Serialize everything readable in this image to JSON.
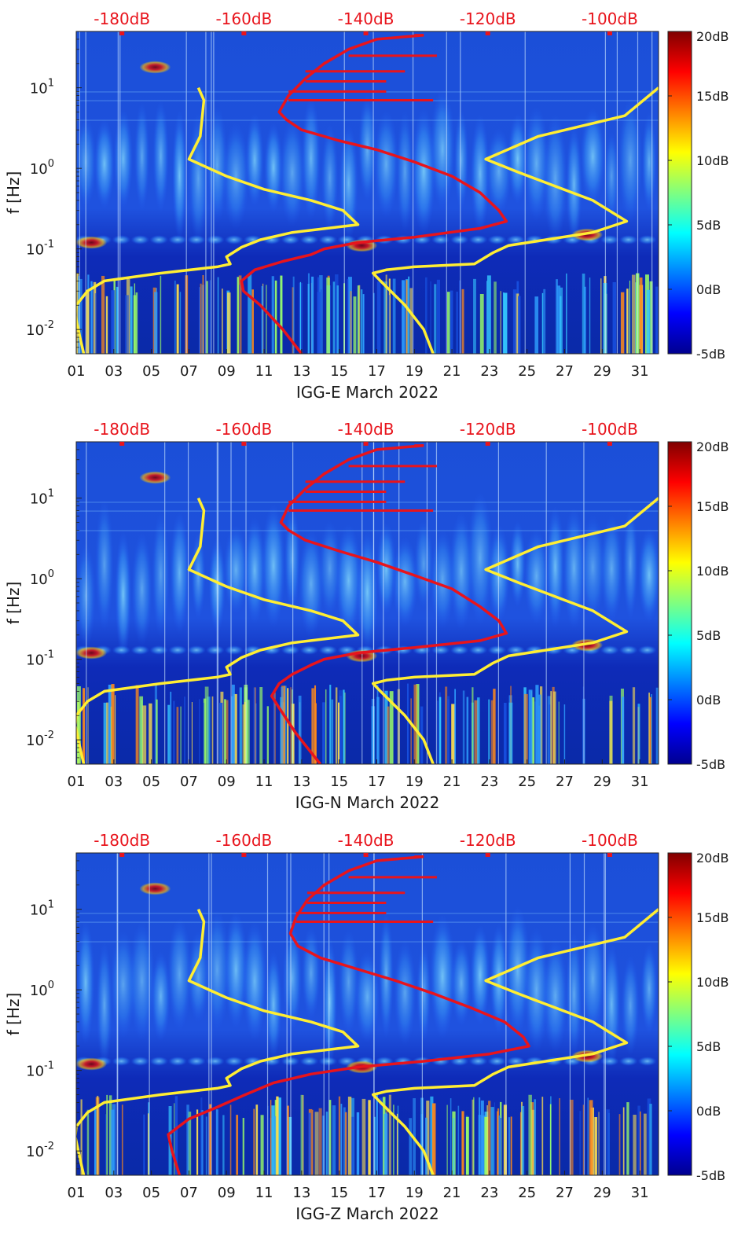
{
  "chart_data": [
    {
      "type": "heatmap",
      "title": "IGG-E March 2022",
      "ylabel": "f [Hz]",
      "x_tick_labels": [
        "01",
        "03",
        "05",
        "07",
        "09",
        "11",
        "13",
        "15",
        "17",
        "19",
        "21",
        "23",
        "25",
        "27",
        "29",
        "31"
      ],
      "x_range_days": [
        1,
        32
      ],
      "y_scale": "log",
      "y_range_hz": [
        0.005,
        50
      ],
      "y_ticks": [
        {
          "mant": "10",
          "exp": "-2"
        },
        {
          "mant": "10",
          "exp": "-1"
        },
        {
          "mant": "10",
          "exp": "0"
        },
        {
          "mant": "10",
          "exp": "1"
        }
      ],
      "top_axis_labels": [
        "-180dB",
        "-160dB",
        "-140dB",
        "-120dB",
        "-100dB"
      ],
      "top_axis_range_db": [
        -187.5,
        -92
      ],
      "colorbar": {
        "range_db": [
          -5,
          20
        ],
        "labels": [
          "20dB",
          "15dB",
          "10dB",
          "5dB",
          "0dB",
          "-5dB"
        ]
      },
      "yellow_curve": [
        [
          7.5,
          10
        ],
        [
          7.8,
          7
        ],
        [
          7.6,
          2.5
        ],
        [
          7.0,
          1.3
        ],
        [
          9.0,
          0.8
        ],
        [
          11.0,
          0.55
        ],
        [
          13.5,
          0.4
        ],
        [
          15.2,
          0.3
        ],
        [
          16.0,
          0.2
        ],
        [
          12.5,
          0.16
        ],
        [
          10.8,
          0.13
        ],
        [
          9.8,
          0.105
        ],
        [
          9.0,
          0.08
        ],
        [
          9.2,
          0.065
        ],
        [
          8.5,
          0.06
        ],
        [
          5.5,
          0.05
        ],
        [
          2.5,
          0.04
        ],
        [
          1.6,
          0.03
        ],
        [
          1.0,
          0.02
        ],
        [
          0.95,
          0.015
        ],
        [
          1.2,
          0.008
        ],
        [
          1.4,
          0.005
        ]
      ],
      "yellow_curve_right": [
        [
          32,
          10
        ],
        [
          30.2,
          4.5
        ],
        [
          25.6,
          2.5
        ],
        [
          22.8,
          1.3
        ],
        [
          24.5,
          0.9
        ],
        [
          26.5,
          0.6
        ],
        [
          28.5,
          0.4
        ],
        [
          30.3,
          0.22
        ],
        [
          28.5,
          0.16
        ],
        [
          26.0,
          0.13
        ],
        [
          24.0,
          0.11
        ],
        [
          23.2,
          0.09
        ],
        [
          22.2,
          0.065
        ],
        [
          19.0,
          0.06
        ],
        [
          17.5,
          0.055
        ],
        [
          16.8,
          0.05
        ],
        [
          17.2,
          0.04
        ],
        [
          18.5,
          0.02
        ],
        [
          19.5,
          0.01
        ],
        [
          20.0,
          0.005
        ]
      ],
      "red_curve": [
        [
          19.5,
          45
        ],
        [
          17.0,
          40
        ],
        [
          15.5,
          30
        ],
        [
          14.2,
          20
        ],
        [
          13.2,
          13
        ],
        [
          12.3,
          8
        ],
        [
          11.8,
          5
        ],
        [
          12.2,
          4
        ],
        [
          13.0,
          3
        ],
        [
          15.0,
          2.2
        ],
        [
          17.0,
          1.7
        ],
        [
          19.0,
          1.2
        ],
        [
          21.0,
          0.8
        ],
        [
          22.5,
          0.5
        ],
        [
          23.5,
          0.3
        ],
        [
          23.9,
          0.22
        ],
        [
          22.5,
          0.18
        ],
        [
          19.0,
          0.14
        ],
        [
          16.0,
          0.12
        ],
        [
          14.2,
          0.1
        ],
        [
          13.5,
          0.085
        ],
        [
          12.0,
          0.07
        ],
        [
          10.5,
          0.055
        ],
        [
          9.8,
          0.04
        ],
        [
          9.9,
          0.03
        ],
        [
          10.8,
          0.02
        ],
        [
          12.0,
          0.01
        ],
        [
          13.0,
          0.005
        ]
      ],
      "red_fingers": [
        [
          19.0,
          45
        ],
        [
          20.2,
          25
        ],
        [
          18.5,
          16
        ],
        [
          17.5,
          12
        ],
        [
          17.5,
          9
        ],
        [
          20.0,
          7
        ]
      ]
    },
    {
      "type": "heatmap",
      "title": "IGG-N March 2022",
      "ylabel": "f [Hz]",
      "x_tick_labels": [
        "01",
        "03",
        "05",
        "07",
        "09",
        "11",
        "13",
        "15",
        "17",
        "19",
        "21",
        "23",
        "25",
        "27",
        "29",
        "31"
      ],
      "x_range_days": [
        1,
        32
      ],
      "y_scale": "log",
      "y_range_hz": [
        0.005,
        50
      ],
      "y_ticks": [
        {
          "mant": "10",
          "exp": "-2"
        },
        {
          "mant": "10",
          "exp": "-1"
        },
        {
          "mant": "10",
          "exp": "0"
        },
        {
          "mant": "10",
          "exp": "1"
        }
      ],
      "top_axis_labels": [
        "-180dB",
        "-160dB",
        "-140dB",
        "-120dB",
        "-100dB"
      ],
      "top_axis_range_db": [
        -187.5,
        -92
      ],
      "colorbar": {
        "range_db": [
          -5,
          20
        ],
        "labels": [
          "20dB",
          "15dB",
          "10dB",
          "5dB",
          "0dB",
          "-5dB"
        ]
      },
      "yellow_curve": [
        [
          7.5,
          10
        ],
        [
          7.8,
          7
        ],
        [
          7.6,
          2.5
        ],
        [
          7.0,
          1.3
        ],
        [
          9.0,
          0.8
        ],
        [
          11.0,
          0.55
        ],
        [
          13.5,
          0.4
        ],
        [
          15.2,
          0.3
        ],
        [
          16.0,
          0.2
        ],
        [
          12.5,
          0.16
        ],
        [
          10.8,
          0.13
        ],
        [
          9.8,
          0.105
        ],
        [
          9.0,
          0.08
        ],
        [
          9.2,
          0.065
        ],
        [
          8.5,
          0.06
        ],
        [
          5.5,
          0.05
        ],
        [
          2.5,
          0.04
        ],
        [
          1.6,
          0.03
        ],
        [
          1.0,
          0.02
        ],
        [
          0.95,
          0.015
        ],
        [
          1.2,
          0.008
        ],
        [
          1.4,
          0.005
        ]
      ],
      "yellow_curve_right": [
        [
          32,
          10
        ],
        [
          30.2,
          4.5
        ],
        [
          25.6,
          2.5
        ],
        [
          22.8,
          1.3
        ],
        [
          24.5,
          0.9
        ],
        [
          26.5,
          0.6
        ],
        [
          28.5,
          0.4
        ],
        [
          30.3,
          0.22
        ],
        [
          28.5,
          0.16
        ],
        [
          26.0,
          0.13
        ],
        [
          24.0,
          0.11
        ],
        [
          23.2,
          0.09
        ],
        [
          22.2,
          0.065
        ],
        [
          19.0,
          0.06
        ],
        [
          17.5,
          0.055
        ],
        [
          16.8,
          0.05
        ],
        [
          17.2,
          0.04
        ],
        [
          18.5,
          0.02
        ],
        [
          19.5,
          0.01
        ],
        [
          20.0,
          0.005
        ]
      ],
      "red_curve": [
        [
          19.5,
          45
        ],
        [
          17.0,
          40
        ],
        [
          15.5,
          30
        ],
        [
          14.2,
          20
        ],
        [
          13.2,
          13
        ],
        [
          12.3,
          8
        ],
        [
          11.9,
          5
        ],
        [
          12.3,
          4
        ],
        [
          13.2,
          3
        ],
        [
          15.0,
          2.2
        ],
        [
          17.0,
          1.6
        ],
        [
          19.0,
          1.1
        ],
        [
          21.0,
          0.75
        ],
        [
          22.5,
          0.45
        ],
        [
          23.5,
          0.3
        ],
        [
          23.9,
          0.21
        ],
        [
          22.5,
          0.17
        ],
        [
          19.0,
          0.14
        ],
        [
          16.0,
          0.12
        ],
        [
          14.2,
          0.1
        ],
        [
          13.5,
          0.085
        ],
        [
          12.5,
          0.065
        ],
        [
          11.8,
          0.05
        ],
        [
          11.4,
          0.035
        ],
        [
          11.8,
          0.025
        ],
        [
          12.7,
          0.012
        ],
        [
          14.0,
          0.005
        ]
      ],
      "red_fingers": [
        [
          19.0,
          45
        ],
        [
          20.2,
          25
        ],
        [
          18.5,
          16
        ],
        [
          17.5,
          12
        ],
        [
          17.5,
          9
        ],
        [
          20.0,
          7
        ]
      ]
    },
    {
      "type": "heatmap",
      "title": "IGG-Z March 2022",
      "ylabel": "f [Hz]",
      "x_tick_labels": [
        "01",
        "03",
        "05",
        "07",
        "09",
        "11",
        "13",
        "15",
        "17",
        "19",
        "21",
        "23",
        "25",
        "27",
        "29",
        "31"
      ],
      "x_range_days": [
        1,
        32
      ],
      "y_scale": "log",
      "y_range_hz": [
        0.005,
        50
      ],
      "y_ticks": [
        {
          "mant": "10",
          "exp": "-2"
        },
        {
          "mant": "10",
          "exp": "-1"
        },
        {
          "mant": "10",
          "exp": "0"
        },
        {
          "mant": "10",
          "exp": "1"
        }
      ],
      "top_axis_labels": [
        "-180dB",
        "-160dB",
        "-140dB",
        "-120dB",
        "-100dB"
      ],
      "top_axis_range_db": [
        -187.5,
        -92
      ],
      "colorbar": {
        "range_db": [
          -5,
          20
        ],
        "labels": [
          "20dB",
          "15dB",
          "10dB",
          "5dB",
          "0dB",
          "-5dB"
        ]
      },
      "yellow_curve": [
        [
          7.5,
          10
        ],
        [
          7.8,
          7
        ],
        [
          7.6,
          2.5
        ],
        [
          7.0,
          1.3
        ],
        [
          9.0,
          0.8
        ],
        [
          11.0,
          0.55
        ],
        [
          13.5,
          0.4
        ],
        [
          15.2,
          0.3
        ],
        [
          16.0,
          0.2
        ],
        [
          12.5,
          0.16
        ],
        [
          10.8,
          0.13
        ],
        [
          9.8,
          0.105
        ],
        [
          9.0,
          0.08
        ],
        [
          9.2,
          0.065
        ],
        [
          8.5,
          0.06
        ],
        [
          5.5,
          0.05
        ],
        [
          2.5,
          0.04
        ],
        [
          1.6,
          0.03
        ],
        [
          1.0,
          0.02
        ],
        [
          0.95,
          0.015
        ],
        [
          1.2,
          0.008
        ],
        [
          1.4,
          0.005
        ]
      ],
      "yellow_curve_right": [
        [
          32,
          10
        ],
        [
          30.2,
          4.5
        ],
        [
          25.6,
          2.5
        ],
        [
          22.8,
          1.3
        ],
        [
          24.5,
          0.9
        ],
        [
          26.5,
          0.6
        ],
        [
          28.5,
          0.4
        ],
        [
          30.3,
          0.22
        ],
        [
          28.5,
          0.16
        ],
        [
          26.0,
          0.13
        ],
        [
          24.0,
          0.11
        ],
        [
          23.2,
          0.09
        ],
        [
          22.2,
          0.065
        ],
        [
          19.0,
          0.06
        ],
        [
          17.5,
          0.055
        ],
        [
          16.8,
          0.05
        ],
        [
          17.2,
          0.04
        ],
        [
          18.5,
          0.02
        ],
        [
          19.5,
          0.01
        ],
        [
          20.0,
          0.005
        ]
      ],
      "red_curve": [
        [
          19.5,
          45
        ],
        [
          17.0,
          40
        ],
        [
          15.5,
          30
        ],
        [
          14.2,
          20
        ],
        [
          13.3,
          13
        ],
        [
          12.7,
          8
        ],
        [
          12.4,
          5
        ],
        [
          12.8,
          3.5
        ],
        [
          14.0,
          2.5
        ],
        [
          16.0,
          1.8
        ],
        [
          18.0,
          1.3
        ],
        [
          20.0,
          0.9
        ],
        [
          22.0,
          0.6
        ],
        [
          23.8,
          0.4
        ],
        [
          24.8,
          0.26
        ],
        [
          25.1,
          0.2
        ],
        [
          23.0,
          0.16
        ],
        [
          19.5,
          0.13
        ],
        [
          16.0,
          0.11
        ],
        [
          13.5,
          0.09
        ],
        [
          11.5,
          0.07
        ],
        [
          10.0,
          0.05
        ],
        [
          8.5,
          0.035
        ],
        [
          7.0,
          0.025
        ],
        [
          5.9,
          0.016
        ],
        [
          6.1,
          0.01
        ],
        [
          6.5,
          0.005
        ]
      ],
      "red_fingers": [
        [
          19.0,
          45
        ],
        [
          20.2,
          25
        ],
        [
          18.5,
          16
        ],
        [
          17.5,
          12
        ],
        [
          17.5,
          9
        ],
        [
          20.0,
          7
        ]
      ]
    }
  ]
}
